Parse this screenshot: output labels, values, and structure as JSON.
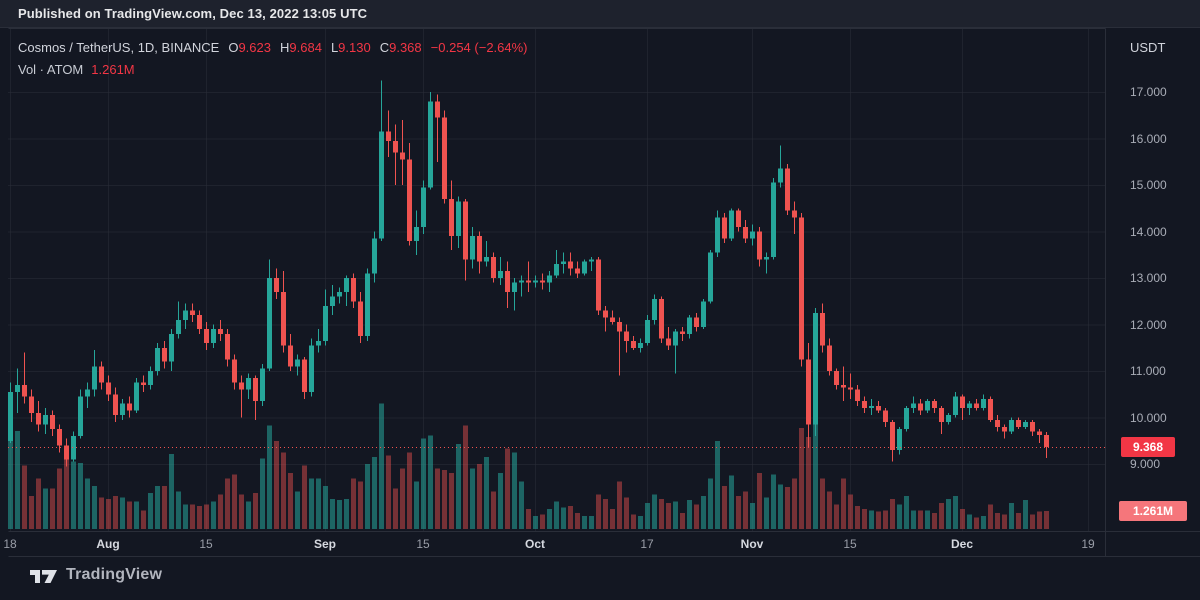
{
  "published_bar": {
    "text": "Published on TradingView.com, Dec 13, 2022 13:05 UTC"
  },
  "legend": {
    "title": "Cosmos / TetherUS, 1D, BINANCE",
    "o_label": "O",
    "o_value": "9.623",
    "h_label": "H",
    "h_value": "9.684",
    "l_label": "L",
    "l_value": "9.130",
    "c_label": "C",
    "c_value": "9.368",
    "change": "−0.254 (−2.64%)",
    "vol_label": "Vol · ATOM",
    "vol_value": "1.261M"
  },
  "axes": {
    "currency": "USDT",
    "price_ticks": [
      17,
      16,
      15,
      14,
      13,
      12,
      11,
      10,
      9
    ],
    "price_tick_labels": [
      "17.000",
      "16.000",
      "15.000",
      "14.000",
      "13.000",
      "12.000",
      "11.000",
      "10.000",
      "9.000"
    ],
    "time_ticks": [
      {
        "label": "18",
        "i": 0,
        "major": false
      },
      {
        "label": "Aug",
        "i": 14,
        "major": true
      },
      {
        "label": "15",
        "i": 28,
        "major": false
      },
      {
        "label": "Sep",
        "i": 45,
        "major": true
      },
      {
        "label": "15",
        "i": 59,
        "major": false
      },
      {
        "label": "Oct",
        "i": 75,
        "major": true
      },
      {
        "label": "17",
        "i": 91,
        "major": false
      },
      {
        "label": "Nov",
        "i": 106,
        "major": true
      },
      {
        "label": "15",
        "i": 120,
        "major": false
      },
      {
        "label": "Dec",
        "i": 136,
        "major": true
      },
      {
        "label": "19",
        "i": 154,
        "major": false
      }
    ]
  },
  "price_label": {
    "value": "9.368"
  },
  "volume_label": {
    "value": "1.261M"
  },
  "footer": {
    "brand": "TradingView"
  },
  "colors": {
    "background": "#131722",
    "topbar": "#1e222d",
    "grid": "rgba(42,46,57,0.55)",
    "border": "#2a2e39",
    "up": "#26a69a",
    "down": "#ef5350",
    "vol_up": "rgba(38,166,154,0.55)",
    "vol_down": "rgba(239,83,80,0.45)",
    "last_price_line": "#ef5350",
    "price_badge": "#f23645",
    "volume_badge": "#f5767b"
  },
  "chart_data": {
    "type": "candlestick",
    "symbol": "Cosmos / TetherUS",
    "interval": "1D",
    "exchange": "BINANCE",
    "quote_currency": "USDT",
    "ylabel": "USDT",
    "y_range": [
      8.6,
      17.6
    ],
    "grid": true,
    "current": {
      "open": 9.623,
      "high": 9.684,
      "low": 9.13,
      "close": 9.368,
      "change": -0.254,
      "change_pct": -2.64,
      "volume": "1.261M"
    },
    "volume_unit": "millions ATOM",
    "columns": [
      "date",
      "open",
      "high",
      "low",
      "close",
      "volume_m"
    ],
    "candles": [
      [
        "Jul 18",
        9.5,
        10.75,
        9.45,
        10.55,
        7.2
      ],
      [
        "Jul 19",
        10.55,
        11.05,
        10.1,
        10.7,
        6.8
      ],
      [
        "Jul 20",
        10.7,
        11.4,
        10.3,
        10.45,
        4.4
      ],
      [
        "Jul 21",
        10.45,
        10.6,
        9.9,
        10.1,
        2.3
      ],
      [
        "Jul 22",
        10.1,
        10.35,
        9.7,
        9.85,
        3.5
      ],
      [
        "Jul 23",
        9.85,
        10.2,
        9.65,
        10.05,
        2.8
      ],
      [
        "Jul 24",
        10.05,
        10.15,
        9.6,
        9.75,
        2.8
      ],
      [
        "Jul 25",
        9.75,
        9.85,
        9.25,
        9.4,
        4.2
      ],
      [
        "Jul 26",
        9.4,
        9.55,
        8.95,
        9.1,
        5.1
      ],
      [
        "Jul 27",
        9.1,
        9.7,
        9.05,
        9.6,
        4.7
      ],
      [
        "Jul 28",
        9.6,
        10.6,
        9.55,
        10.45,
        4.6
      ],
      [
        "Jul 29",
        10.45,
        10.75,
        10.2,
        10.6,
        3.5
      ],
      [
        "Jul 30",
        10.6,
        11.45,
        10.45,
        11.1,
        3.0
      ],
      [
        "Jul 31",
        11.1,
        11.2,
        10.6,
        10.75,
        2.2
      ],
      [
        "Aug 1",
        10.75,
        10.9,
        10.35,
        10.5,
        2.1
      ],
      [
        "Aug 2",
        10.5,
        10.65,
        9.9,
        10.05,
        2.3
      ],
      [
        "Aug 3",
        10.05,
        10.4,
        9.95,
        10.3,
        2.2
      ],
      [
        "Aug 4",
        10.3,
        10.45,
        10.0,
        10.15,
        1.9
      ],
      [
        "Aug 5",
        10.15,
        10.85,
        10.1,
        10.75,
        1.9
      ],
      [
        "Aug 6",
        10.75,
        10.9,
        10.55,
        10.7,
        1.3
      ],
      [
        "Aug 7",
        10.7,
        11.1,
        10.6,
        11.0,
        2.5
      ],
      [
        "Aug 8",
        11.0,
        11.6,
        10.9,
        11.5,
        3.0
      ],
      [
        "Aug 9",
        11.5,
        11.65,
        11.05,
        11.2,
        3.0
      ],
      [
        "Aug 10",
        11.2,
        11.9,
        11.0,
        11.8,
        5.2
      ],
      [
        "Aug 11",
        11.8,
        12.5,
        11.7,
        12.1,
        2.6
      ],
      [
        "Aug 12",
        12.1,
        12.45,
        11.9,
        12.3,
        1.7
      ],
      [
        "Aug 13",
        12.3,
        12.45,
        12.05,
        12.2,
        1.7
      ],
      [
        "Aug 14",
        12.2,
        12.3,
        11.8,
        11.9,
        1.6
      ],
      [
        "Aug 15",
        11.9,
        12.05,
        11.45,
        11.6,
        1.7
      ],
      [
        "Aug 16",
        11.6,
        12.0,
        11.5,
        11.9,
        1.9
      ],
      [
        "Aug 17",
        11.9,
        12.1,
        11.65,
        11.8,
        2.4
      ],
      [
        "Aug 18",
        11.8,
        11.9,
        11.1,
        11.25,
        3.5
      ],
      [
        "Aug 19",
        11.25,
        11.35,
        10.6,
        10.75,
        3.8
      ],
      [
        "Aug 20",
        10.75,
        10.9,
        10.0,
        10.6,
        2.4
      ],
      [
        "Aug 21",
        10.6,
        10.95,
        10.4,
        10.85,
        1.9
      ],
      [
        "Aug 22",
        10.85,
        10.9,
        9.95,
        10.35,
        2.5
      ],
      [
        "Aug 23",
        10.35,
        11.15,
        10.25,
        11.05,
        4.9
      ],
      [
        "Aug 24",
        11.05,
        13.4,
        11.0,
        13.0,
        7.2
      ],
      [
        "Aug 25",
        13.0,
        13.2,
        12.55,
        12.7,
        6.1
      ],
      [
        "Aug 26",
        12.7,
        13.15,
        11.4,
        11.55,
        5.3
      ],
      [
        "Aug 27",
        11.55,
        11.8,
        11.0,
        11.1,
        3.9
      ],
      [
        "Aug 28",
        11.1,
        11.35,
        10.9,
        11.25,
        2.6
      ],
      [
        "Aug 29",
        11.25,
        11.3,
        10.4,
        10.55,
        4.4
      ],
      [
        "Aug 30",
        10.55,
        11.7,
        10.45,
        11.55,
        3.5
      ],
      [
        "Aug 31",
        11.55,
        11.9,
        11.4,
        11.65,
        3.5
      ],
      [
        "Sep 1",
        11.65,
        12.75,
        11.55,
        12.4,
        3.0
      ],
      [
        "Sep 2",
        12.4,
        12.85,
        12.2,
        12.6,
        2.1
      ],
      [
        "Sep 3",
        12.6,
        12.8,
        12.45,
        12.7,
        2.0
      ],
      [
        "Sep 4",
        12.7,
        13.05,
        12.4,
        13.0,
        2.1
      ],
      [
        "Sep 5",
        13.0,
        13.1,
        12.35,
        12.5,
        3.5
      ],
      [
        "Sep 6",
        12.5,
        12.7,
        11.6,
        11.75,
        3.3
      ],
      [
        "Sep 7",
        11.75,
        13.2,
        11.65,
        13.1,
        4.5
      ],
      [
        "Sep 8",
        13.1,
        14.0,
        12.9,
        13.85,
        5.0
      ],
      [
        "Sep 9",
        13.85,
        17.25,
        13.8,
        16.15,
        8.7
      ],
      [
        "Sep 10",
        16.15,
        16.6,
        15.6,
        15.95,
        5.1
      ],
      [
        "Sep 11",
        15.95,
        16.3,
        15.0,
        15.7,
        2.8
      ],
      [
        "Sep 12",
        15.7,
        16.4,
        15.0,
        15.55,
        4.2
      ],
      [
        "Sep 13",
        15.55,
        15.9,
        13.7,
        13.8,
        5.3
      ],
      [
        "Sep 14",
        13.8,
        14.45,
        13.5,
        14.1,
        3.3
      ],
      [
        "Sep 15",
        14.1,
        15.1,
        13.95,
        14.95,
        6.3
      ],
      [
        "Sep 16",
        14.95,
        17.0,
        14.9,
        16.8,
        6.5
      ],
      [
        "Sep 17",
        16.8,
        16.95,
        15.5,
        16.45,
        4.2
      ],
      [
        "Sep 18",
        16.45,
        16.6,
        14.6,
        14.7,
        4.1
      ],
      [
        "Sep 19",
        14.7,
        15.1,
        13.6,
        13.9,
        3.9
      ],
      [
        "Sep 20",
        13.9,
        14.75,
        13.65,
        14.65,
        5.9
      ],
      [
        "Sep 21",
        14.65,
        14.7,
        12.95,
        13.4,
        7.2
      ],
      [
        "Sep 22",
        13.4,
        14.1,
        13.2,
        13.9,
        4.2
      ],
      [
        "Sep 23",
        13.9,
        14.0,
        13.1,
        13.35,
        4.5
      ],
      [
        "Sep 24",
        13.35,
        13.8,
        13.25,
        13.45,
        5.0
      ],
      [
        "Sep 25",
        13.45,
        13.55,
        12.9,
        13.0,
        2.6
      ],
      [
        "Sep 26",
        13.0,
        13.45,
        12.85,
        13.15,
        3.9
      ],
      [
        "Sep 27",
        13.15,
        13.35,
        12.35,
        12.7,
        5.6
      ],
      [
        "Sep 28",
        12.7,
        13.0,
        12.3,
        12.9,
        5.3
      ],
      [
        "Sep 29",
        12.9,
        13.05,
        12.6,
        12.95,
        3.3
      ],
      [
        "Sep 30",
        12.95,
        13.35,
        12.7,
        12.9,
        1.4
      ],
      [
        "Oct 1",
        12.9,
        13.05,
        12.8,
        12.95,
        0.9
      ],
      [
        "Oct 2",
        12.95,
        13.1,
        12.75,
        12.9,
        1.0
      ],
      [
        "Oct 3",
        12.9,
        13.15,
        12.7,
        13.05,
        1.4
      ],
      [
        "Oct 4",
        13.05,
        13.6,
        13.0,
        13.3,
        1.9
      ],
      [
        "Oct 5",
        13.3,
        13.55,
        13.1,
        13.35,
        1.5
      ],
      [
        "Oct 6",
        13.35,
        13.55,
        13.05,
        13.2,
        1.6
      ],
      [
        "Oct 7",
        13.2,
        13.35,
        13.0,
        13.1,
        1.1
      ],
      [
        "Oct 8",
        13.1,
        13.4,
        13.05,
        13.35,
        0.9
      ],
      [
        "Oct 9",
        13.35,
        13.45,
        13.15,
        13.4,
        0.9
      ],
      [
        "Oct 10",
        13.4,
        13.45,
        12.2,
        12.3,
        2.4
      ],
      [
        "Oct 11",
        12.3,
        12.4,
        11.85,
        12.15,
        2.1
      ],
      [
        "Oct 12",
        12.15,
        12.3,
        12.0,
        12.05,
        1.4
      ],
      [
        "Oct 13",
        12.05,
        12.15,
        10.9,
        11.85,
        3.3
      ],
      [
        "Oct 14",
        11.85,
        12.0,
        11.4,
        11.65,
        2.2
      ],
      [
        "Oct 15",
        11.65,
        11.75,
        11.45,
        11.5,
        1.0
      ],
      [
        "Oct 16",
        11.5,
        11.7,
        11.4,
        11.6,
        0.9
      ],
      [
        "Oct 17",
        11.6,
        12.2,
        11.55,
        12.1,
        1.8
      ],
      [
        "Oct 18",
        12.1,
        12.65,
        12.0,
        12.55,
        2.4
      ],
      [
        "Oct 19",
        12.55,
        12.6,
        11.6,
        11.7,
        2.1
      ],
      [
        "Oct 20",
        11.7,
        11.95,
        11.45,
        11.55,
        1.8
      ],
      [
        "Oct 21",
        11.55,
        11.9,
        10.95,
        11.85,
        1.9
      ],
      [
        "Oct 22",
        11.85,
        11.95,
        11.65,
        11.8,
        1.1
      ],
      [
        "Oct 23",
        11.8,
        12.2,
        11.7,
        12.15,
        2.0
      ],
      [
        "Oct 24",
        12.15,
        12.25,
        11.85,
        11.95,
        1.7
      ],
      [
        "Oct 25",
        11.95,
        12.55,
        11.9,
        12.5,
        2.3
      ],
      [
        "Oct 26",
        12.5,
        13.6,
        12.45,
        13.55,
        3.5
      ],
      [
        "Oct 27",
        13.55,
        14.45,
        13.45,
        14.3,
        6.1
      ],
      [
        "Oct 28",
        14.3,
        14.4,
        13.75,
        13.85,
        3.0
      ],
      [
        "Oct 29",
        13.85,
        14.5,
        13.8,
        14.45,
        3.7
      ],
      [
        "Oct 30",
        14.45,
        14.5,
        14.0,
        14.1,
        2.3
      ],
      [
        "Oct 31",
        14.1,
        14.25,
        13.75,
        13.85,
        2.6
      ],
      [
        "Nov 1",
        13.85,
        14.15,
        13.7,
        14.0,
        1.8
      ],
      [
        "Nov 2",
        14.0,
        14.1,
        13.25,
        13.4,
        3.9
      ],
      [
        "Nov 3",
        13.4,
        13.55,
        13.1,
        13.45,
        2.2
      ],
      [
        "Nov 4",
        13.45,
        15.15,
        13.4,
        15.05,
        3.8
      ],
      [
        "Nov 5",
        15.05,
        15.85,
        14.95,
        15.35,
        3.1
      ],
      [
        "Nov 6",
        15.35,
        15.45,
        14.35,
        14.45,
        2.9
      ],
      [
        "Nov 7",
        14.45,
        14.65,
        13.95,
        14.3,
        3.5
      ],
      [
        "Nov 8",
        14.3,
        14.4,
        11.1,
        11.25,
        7.0
      ],
      [
        "Nov 9",
        11.25,
        11.6,
        9.35,
        9.85,
        6.4
      ],
      [
        "Nov 10",
        9.85,
        12.35,
        9.6,
        12.25,
        9.2
      ],
      [
        "Nov 11",
        12.25,
        12.45,
        11.4,
        11.55,
        3.5
      ],
      [
        "Nov 12",
        11.55,
        11.7,
        10.9,
        11.0,
        2.6
      ],
      [
        "Nov 13",
        11.0,
        11.05,
        10.6,
        10.7,
        1.7
      ],
      [
        "Nov 14",
        10.7,
        11.1,
        10.35,
        10.65,
        3.5
      ],
      [
        "Nov 15",
        10.65,
        10.95,
        10.4,
        10.6,
        2.4
      ],
      [
        "Nov 16",
        10.6,
        10.7,
        10.25,
        10.35,
        1.6
      ],
      [
        "Nov 17",
        10.35,
        10.45,
        10.1,
        10.2,
        1.4
      ],
      [
        "Nov 18",
        10.2,
        10.4,
        10.05,
        10.25,
        1.3
      ],
      [
        "Nov 19",
        10.25,
        10.35,
        10.1,
        10.15,
        1.2
      ],
      [
        "Nov 20",
        10.15,
        10.2,
        9.8,
        9.9,
        1.3
      ],
      [
        "Nov 21",
        9.9,
        9.95,
        9.05,
        9.3,
        2.1
      ],
      [
        "Nov 22",
        9.3,
        9.8,
        9.2,
        9.75,
        1.7
      ],
      [
        "Nov 23",
        9.75,
        10.25,
        9.7,
        10.2,
        2.3
      ],
      [
        "Nov 24",
        10.2,
        10.45,
        10.1,
        10.3,
        1.3
      ],
      [
        "Nov 25",
        10.3,
        10.4,
        10.05,
        10.15,
        1.3
      ],
      [
        "Nov 26",
        10.15,
        10.4,
        10.1,
        10.35,
        1.3
      ],
      [
        "Nov 27",
        10.35,
        10.4,
        10.1,
        10.2,
        1.1
      ],
      [
        "Nov 28",
        10.2,
        10.25,
        9.65,
        9.9,
        1.8
      ],
      [
        "Nov 29",
        9.9,
        10.1,
        9.85,
        10.05,
        2.1
      ],
      [
        "Nov 30",
        10.05,
        10.55,
        10.0,
        10.45,
        2.3
      ],
      [
        "Dec 1",
        10.45,
        10.5,
        9.95,
        10.2,
        1.4
      ],
      [
        "Dec 2",
        10.2,
        10.35,
        10.05,
        10.3,
        1.0
      ],
      [
        "Dec 3",
        10.3,
        10.4,
        10.15,
        10.2,
        0.8
      ],
      [
        "Dec 4",
        10.2,
        10.5,
        10.15,
        10.4,
        0.9
      ],
      [
        "Dec 5",
        10.4,
        10.45,
        9.9,
        9.95,
        1.7
      ],
      [
        "Dec 6",
        9.95,
        10.05,
        9.7,
        9.8,
        1.1
      ],
      [
        "Dec 7",
        9.8,
        9.85,
        9.55,
        9.7,
        1.0
      ],
      [
        "Dec 8",
        9.7,
        10.0,
        9.65,
        9.95,
        1.8
      ],
      [
        "Dec 9",
        9.95,
        10.0,
        9.75,
        9.8,
        1.1
      ],
      [
        "Dec 10",
        9.8,
        9.95,
        9.75,
        9.9,
        2.0
      ],
      [
        "Dec 11",
        9.9,
        9.95,
        9.6,
        9.7,
        1.0
      ],
      [
        "Dec 12",
        9.7,
        9.75,
        9.45,
        9.62,
        1.2
      ],
      [
        "Dec 13",
        9.623,
        9.684,
        9.13,
        9.368,
        1.261
      ]
    ],
    "last_close": 9.368
  }
}
